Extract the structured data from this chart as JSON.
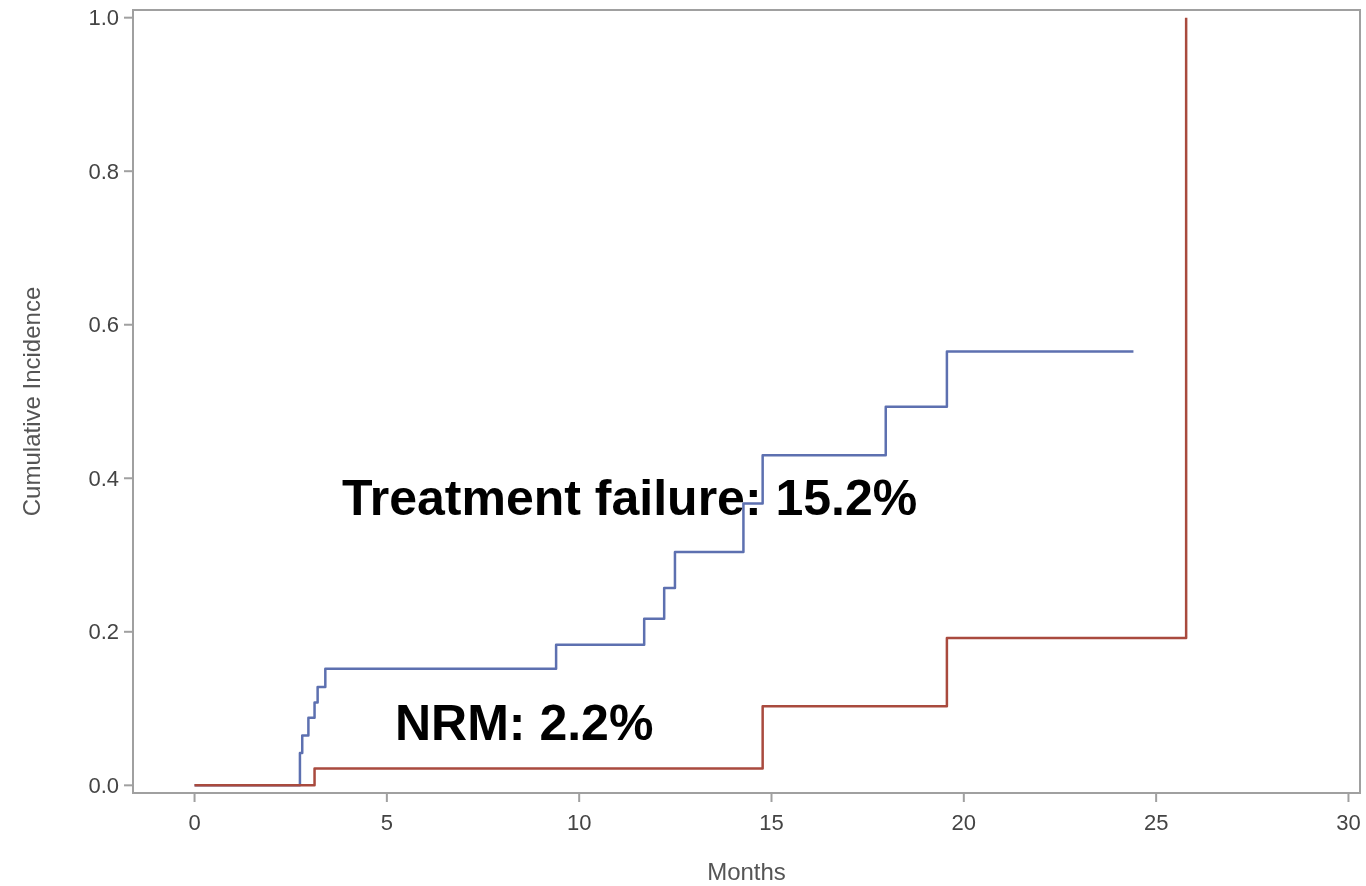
{
  "chart_data": {
    "type": "step",
    "xlabel": "Months",
    "ylabel": "Cumulative Incidence",
    "xlim": [
      -1.6,
      30.3
    ],
    "ylim": [
      -0.01,
      1.01
    ],
    "xticks": [
      0,
      5,
      10,
      15,
      20,
      25,
      30
    ],
    "yticks": [
      {
        "value": 0,
        "label": "0.0"
      },
      {
        "value": 0.2,
        "label": "0.2"
      },
      {
        "value": 0.4,
        "label": "0.4"
      },
      {
        "value": 0.6,
        "label": "0.6"
      },
      {
        "value": 0.8,
        "label": "0.8"
      },
      {
        "value": 1,
        "label": "1.0"
      }
    ],
    "grid": false,
    "marker": "none",
    "line_style": "solid",
    "series": [
      {
        "color": "#5d70b0",
        "x": [
          0,
          2.74,
          2.8,
          2.96,
          3.12,
          3.2,
          3.4,
          9.4,
          11.69,
          12.21,
          12.49,
          14.27,
          14.77,
          17.97,
          19.56,
          24.41
        ],
        "values": [
          0,
          0.042,
          0.065,
          0.088,
          0.108,
          0.128,
          0.152,
          0.183,
          0.217,
          0.257,
          0.304,
          0.367,
          0.43,
          0.493,
          0.565,
          0.565
        ]
      },
      {
        "color": "#a94a3e",
        "x": [
          0,
          3.12,
          14.77,
          19.56,
          25.78
        ],
        "values": [
          0,
          0.022,
          0.103,
          0.192,
          1.0
        ]
      }
    ],
    "annotations": [
      "Treatment failure: 15.2%",
      "NRM: 2.2%"
    ]
  }
}
